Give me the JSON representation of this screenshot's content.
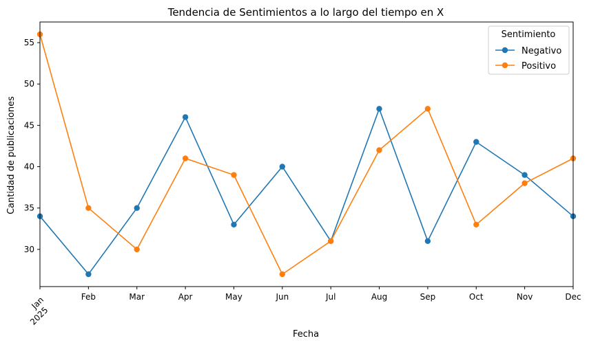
{
  "chart_data": {
    "type": "line",
    "title": "Tendencia de Sentimientos a lo largo del tiempo en X",
    "xlabel": "Fecha",
    "ylabel": "Cantidad de publicaciones",
    "categories": [
      "Jan\n2025",
      "Feb",
      "Mar",
      "Apr",
      "May",
      "Jun",
      "Jul",
      "Aug",
      "Sep",
      "Oct",
      "Nov",
      "Dec"
    ],
    "series": [
      {
        "name": "Negativo",
        "color": "#1f77b4",
        "values": [
          34,
          27,
          35,
          46,
          33,
          40,
          31,
          47,
          31,
          43,
          39,
          34
        ]
      },
      {
        "name": "Positivo",
        "color": "#ff7f0e",
        "values": [
          56,
          35,
          30,
          41,
          39,
          27,
          31,
          42,
          47,
          33,
          38,
          41
        ]
      }
    ],
    "ylim": [
      25.5,
      57.5
    ],
    "yticks": [
      30,
      35,
      40,
      45,
      50,
      55
    ],
    "grid": false,
    "legend": {
      "title": "Sentimiento",
      "placement": "top-right"
    }
  }
}
